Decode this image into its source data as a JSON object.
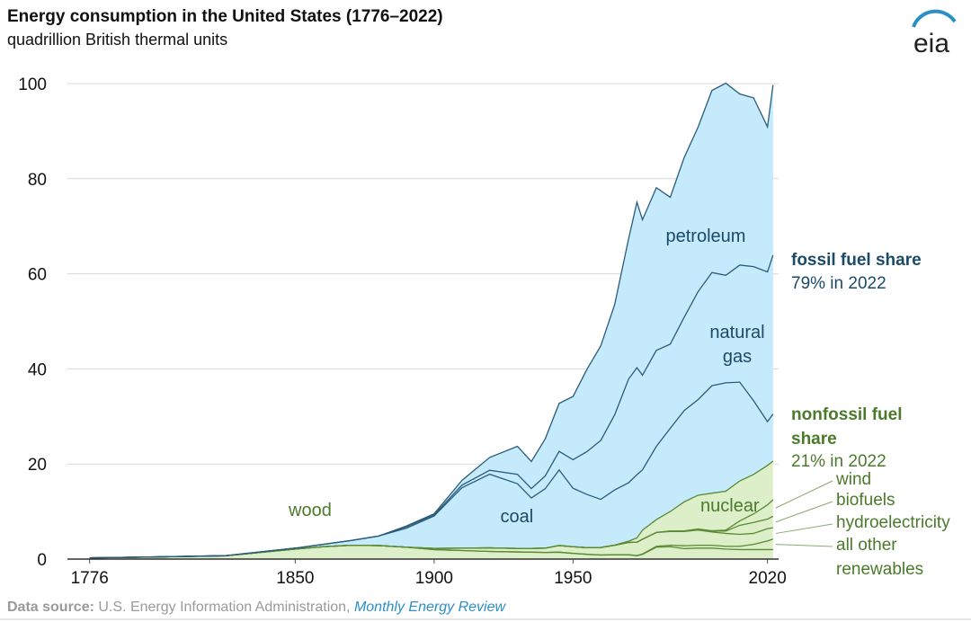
{
  "chart_data": {
    "type": "stacked_area",
    "title": "Energy consumption in the United States (1776–2022)",
    "subtitle": "quadrillion British thermal units",
    "logo": "eia",
    "x": [
      1776,
      1800,
      1825,
      1850,
      1860,
      1870,
      1880,
      1890,
      1900,
      1910,
      1920,
      1930,
      1935,
      1940,
      1945,
      1950,
      1955,
      1960,
      1965,
      1970,
      1973,
      1975,
      1980,
      1985,
      1990,
      1995,
      2000,
      2005,
      2010,
      2015,
      2020,
      2022
    ],
    "xlim": [
      1768,
      2024
    ],
    "xticks": [
      1776,
      1850,
      1900,
      1950,
      2020
    ],
    "ylim": [
      0,
      100
    ],
    "yticks": [
      0,
      20,
      40,
      60,
      80,
      100
    ],
    "grid": true,
    "series": [
      {
        "name": "wood",
        "color": "#5b8a35",
        "fill": "#dcefc8",
        "values": [
          0.25,
          0.45,
          0.7,
          2.1,
          2.6,
          2.9,
          2.85,
          2.5,
          2.0,
          1.8,
          1.6,
          1.5,
          1.45,
          1.4,
          1.45,
          1.2,
          1.0,
          0.85,
          0.9,
          0.9,
          0.7,
          1.0,
          2.5,
          2.6,
          2.2,
          2.3,
          2.3,
          2.1,
          2.0,
          2.0,
          2.0,
          2.0
        ]
      },
      {
        "name": "all other renewables",
        "color": "#5b8a35",
        "fill": "#dcefc8",
        "values": [
          0,
          0,
          0,
          0,
          0,
          0,
          0,
          0,
          0,
          0,
          0,
          0,
          0,
          0,
          0,
          0,
          0,
          0,
          0.01,
          0.01,
          0.05,
          0.07,
          0.2,
          0.3,
          0.6,
          0.6,
          0.6,
          0.6,
          0.7,
          1.1,
          1.8,
          2.2
        ]
      },
      {
        "name": "hydroelectricity",
        "color": "#5b8a35",
        "fill": "#dcefc8",
        "values": [
          0,
          0,
          0,
          0,
          0,
          0,
          0,
          0,
          0.25,
          0.5,
          0.75,
          0.75,
          0.8,
          0.9,
          1.4,
          1.4,
          1.4,
          1.6,
          2.0,
          2.6,
          2.8,
          3.1,
          2.9,
          2.9,
          3.0,
          3.2,
          2.8,
          2.7,
          2.5,
          2.3,
          2.6,
          2.4
        ]
      },
      {
        "name": "biofuels",
        "color": "#5b8a35",
        "fill": "#dcefc8",
        "values": [
          0,
          0,
          0,
          0,
          0,
          0,
          0,
          0,
          0,
          0,
          0,
          0,
          0,
          0,
          0,
          0,
          0,
          0,
          0,
          0,
          0,
          0,
          0,
          0.1,
          0.1,
          0.2,
          0.2,
          0.5,
          1.9,
          2.3,
          2.0,
          2.4
        ]
      },
      {
        "name": "wind",
        "color": "#5b8a35",
        "fill": "#dcefc8",
        "values": [
          0,
          0,
          0,
          0,
          0,
          0,
          0,
          0,
          0,
          0,
          0,
          0,
          0,
          0,
          0,
          0,
          0,
          0,
          0,
          0,
          0,
          0,
          0,
          0,
          0.03,
          0.03,
          0.06,
          0.18,
          0.92,
          1.8,
          3.0,
          3.5
        ]
      },
      {
        "name": "nuclear",
        "color": "#5b8a35",
        "fill": "#dcefc8",
        "values": [
          0,
          0,
          0,
          0,
          0,
          0,
          0,
          0,
          0,
          0,
          0,
          0,
          0,
          0,
          0,
          0,
          0,
          0.01,
          0.04,
          0.24,
          0.9,
          1.9,
          2.7,
          4.1,
          6.1,
          7.1,
          7.9,
          8.2,
          8.4,
          8.3,
          8.3,
          8.1
        ]
      },
      {
        "name": "coal",
        "color": "#2a5c7a",
        "fill": "#c4eafb",
        "values": [
          0,
          0.01,
          0.02,
          0.2,
          0.5,
          1.0,
          2.0,
          4.0,
          6.8,
          12.7,
          15.5,
          13.6,
          10.6,
          12.5,
          15.9,
          12.3,
          11.2,
          10.1,
          11.6,
          12.3,
          13.3,
          12.7,
          15.4,
          17.5,
          19.2,
          20.1,
          22.6,
          22.8,
          20.8,
          15.5,
          9.2,
          9.9
        ]
      },
      {
        "name": "natural gas",
        "color": "#2a5c7a",
        "fill": "#c4eafb",
        "values": [
          0,
          0,
          0,
          0,
          0,
          0,
          0,
          0.3,
          0.25,
          0.54,
          0.83,
          1.97,
          1.97,
          2.7,
          3.9,
          6.0,
          9.0,
          12.4,
          15.8,
          21.8,
          22.5,
          19.9,
          20.2,
          17.7,
          19.6,
          22.7,
          23.8,
          22.6,
          24.6,
          28.2,
          31.5,
          33.4
        ]
      },
      {
        "name": "petroleum",
        "color": "#2a5c7a",
        "fill": "#c4eafb",
        "values": [
          0,
          0,
          0,
          0,
          0,
          0,
          0,
          0.16,
          0.23,
          1.0,
          2.7,
          5.9,
          5.7,
          7.8,
          10.1,
          13.3,
          17.3,
          19.9,
          23.2,
          29.5,
          34.8,
          32.7,
          34.2,
          30.9,
          33.6,
          34.6,
          38.3,
          40.4,
          36.0,
          35.5,
          30.5,
          35.8
        ]
      }
    ],
    "annotations": [
      {
        "text": "fossil fuel share",
        "color": "#1b4a66"
      },
      {
        "text": "79% in 2022",
        "color": "#1b4a66"
      },
      {
        "text": "nonfossil fuel share",
        "color": "#4a7a2a"
      },
      {
        "text": "21% in 2022",
        "color": "#4a7a2a"
      }
    ],
    "source_label": "Data source:",
    "source": "U.S. Energy Information Administration,",
    "source_link": "Monthly Energy Review"
  }
}
